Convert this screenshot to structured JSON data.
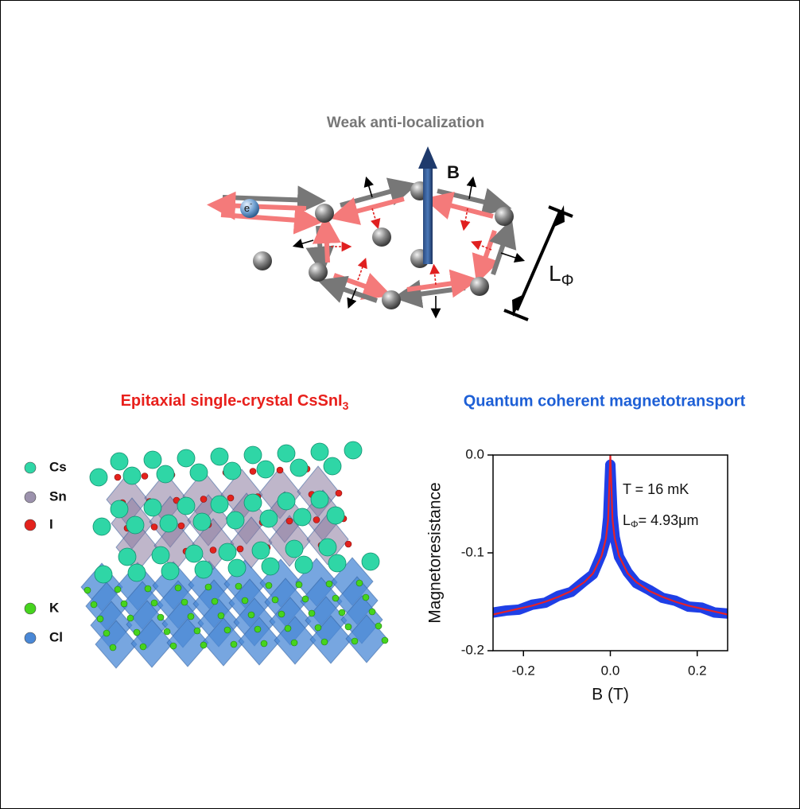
{
  "diagram": {
    "title": "Weak anti-localization",
    "field_label": "B",
    "electron_label": "e",
    "electron_charge": "-",
    "length_label": "L",
    "length_subscript": "Φ"
  },
  "crystal": {
    "title": "Epitaxial single-crystal CsSnI",
    "title_subscript": "3",
    "legend": [
      {
        "label": "Cs",
        "color": "#2fd6a6"
      },
      {
        "label": "Sn",
        "color": "#9c92ad"
      },
      {
        "label": "I",
        "color": "#e3221c"
      },
      {
        "label": "K",
        "color": "#46d41e"
      },
      {
        "label": "Cl",
        "color": "#4a88d6"
      }
    ]
  },
  "chart_data": {
    "type": "line",
    "title": "Quantum coherent magnetotransport",
    "x_label": "B (T)",
    "y_label": "Magnetoresistance",
    "annotation": "T = 16 mK",
    "coherence_symbol": "L",
    "coherence_subscript": "Φ",
    "coherence_value": "= 4.93μm",
    "x": [
      -0.27,
      -0.24,
      -0.21,
      -0.18,
      -0.15,
      -0.12,
      -0.09,
      -0.06,
      -0.04,
      -0.02,
      -0.01,
      -0.005,
      0,
      0.005,
      0.01,
      0.02,
      0.04,
      0.06,
      0.09,
      0.12,
      0.15,
      0.18,
      0.21,
      0.24,
      0.27
    ],
    "series": [
      {
        "color": "#1f3fe6",
        "values": [
          -0.161,
          -0.159,
          -0.158,
          -0.153,
          -0.151,
          -0.144,
          -0.14,
          -0.129,
          -0.122,
          -0.101,
          -0.086,
          -0.064,
          -0.01,
          -0.062,
          -0.084,
          -0.104,
          -0.12,
          -0.131,
          -0.138,
          -0.146,
          -0.149,
          -0.155,
          -0.156,
          -0.161,
          -0.162
        ]
      },
      {
        "color": "#e3222a",
        "values": [
          -0.163,
          -0.16,
          -0.157,
          -0.154,
          -0.15,
          -0.145,
          -0.139,
          -0.13,
          -0.121,
          -0.103,
          -0.085,
          -0.066,
          0,
          -0.066,
          -0.085,
          -0.103,
          -0.121,
          -0.13,
          -0.139,
          -0.145,
          -0.15,
          -0.154,
          -0.157,
          -0.16,
          -0.163
        ]
      }
    ],
    "xlim": [
      -0.27,
      0.27
    ],
    "ylim": [
      -0.2,
      0
    ],
    "xticks": [
      -0.2,
      {
        "value": 0,
        "label": "0.0"
      },
      0.2
    ],
    "yticks": [
      {
        "value": 0,
        "label": "0.0"
      },
      -0.1,
      -0.2
    ]
  }
}
